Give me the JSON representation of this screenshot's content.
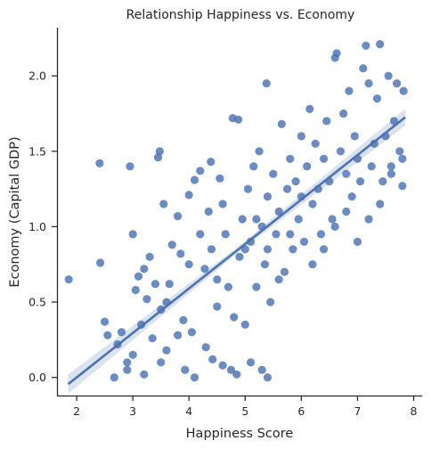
{
  "chart_data": {
    "type": "scatter",
    "title": "Relationship Happiness vs. Economy",
    "xlabel": "Happiness Score",
    "ylabel": "Economy (Capital GDP)",
    "xlim": [
      1.65,
      8.15
    ],
    "ylim": [
      -0.12,
      2.32
    ],
    "xticks": [
      2,
      3,
      4,
      5,
      6,
      7,
      8
    ],
    "yticks": [
      0.0,
      0.5,
      1.0,
      1.5,
      2.0
    ],
    "ytick_labels": [
      "0.0",
      "0.5",
      "1.0",
      "1.5",
      "2.0"
    ],
    "grid": false,
    "legend": "none",
    "regression": {
      "slope": 0.295,
      "intercept": -0.59,
      "x_range": [
        1.85,
        7.85
      ],
      "ci_halfwidth": 0.04
    },
    "series": [
      {
        "color": "#4c72b0",
        "points": [
          [
            1.86,
            0.65
          ],
          [
            2.41,
            1.42
          ],
          [
            2.42,
            0.76
          ],
          [
            2.5,
            0.37
          ],
          [
            2.55,
            0.28
          ],
          [
            2.73,
            0.22
          ],
          [
            2.8,
            0.3
          ],
          [
            2.9,
            0.1
          ],
          [
            2.95,
            1.4
          ],
          [
            3.0,
            0.95
          ],
          [
            3.05,
            0.58
          ],
          [
            3.1,
            0.67
          ],
          [
            3.15,
            0.35
          ],
          [
            3.2,
            0.72
          ],
          [
            3.25,
            0.52
          ],
          [
            3.3,
            0.8
          ],
          [
            3.35,
            0.26
          ],
          [
            3.45,
            1.46
          ],
          [
            3.48,
            1.5
          ],
          [
            3.5,
            0.45
          ],
          [
            3.55,
            1.15
          ],
          [
            3.6,
            0.18
          ],
          [
            3.65,
            0.62
          ],
          [
            3.7,
            0.88
          ],
          [
            3.8,
            1.07
          ],
          [
            3.85,
            0.82
          ],
          [
            3.9,
            0.38
          ],
          [
            3.93,
            0.05
          ],
          [
            4.0,
            1.21
          ],
          [
            4.1,
            1.31
          ],
          [
            4.05,
            0.3
          ],
          [
            4.2,
            1.37
          ],
          [
            4.28,
            0.72
          ],
          [
            4.35,
            1.1
          ],
          [
            4.39,
            1.43
          ],
          [
            4.42,
            0.12
          ],
          [
            4.5,
            0.47
          ],
          [
            4.55,
            1.32
          ],
          [
            4.6,
            1.15
          ],
          [
            4.65,
            0.95
          ],
          [
            4.7,
            0.6
          ],
          [
            4.75,
            0.05
          ],
          [
            4.78,
            1.72
          ],
          [
            4.88,
            1.71
          ],
          [
            4.9,
            0.8
          ],
          [
            4.95,
            1.05
          ],
          [
            5.0,
            0.35
          ],
          [
            5.05,
            1.25
          ],
          [
            5.1,
            0.9
          ],
          [
            5.15,
            1.4
          ],
          [
            5.2,
            0.6
          ],
          [
            5.25,
            1.5
          ],
          [
            5.3,
            1.0
          ],
          [
            5.35,
            0.75
          ],
          [
            5.38,
            1.95
          ],
          [
            5.4,
            1.2
          ],
          [
            5.45,
            0.5
          ],
          [
            5.5,
            1.35
          ],
          [
            5.55,
            0.95
          ],
          [
            5.6,
            1.1
          ],
          [
            5.65,
            1.68
          ],
          [
            5.7,
            0.7
          ],
          [
            5.75,
            1.25
          ],
          [
            5.8,
            1.45
          ],
          [
            5.85,
            0.85
          ],
          [
            5.9,
            1.3
          ],
          [
            5.95,
            1.05
          ],
          [
            6.0,
            1.6
          ],
          [
            6.05,
            0.9
          ],
          [
            6.1,
            1.4
          ],
          [
            6.15,
            1.78
          ],
          [
            6.2,
            1.15
          ],
          [
            6.25,
            1.55
          ],
          [
            6.3,
            1.25
          ],
          [
            6.35,
            0.95
          ],
          [
            6.4,
            1.45
          ],
          [
            6.45,
            1.7
          ],
          [
            6.5,
            1.3
          ],
          [
            6.55,
            1.05
          ],
          [
            6.6,
            2.12
          ],
          [
            6.63,
            2.15
          ],
          [
            6.7,
            1.5
          ],
          [
            6.75,
            1.75
          ],
          [
            6.8,
            1.35
          ],
          [
            6.85,
            1.9
          ],
          [
            6.9,
            1.2
          ],
          [
            6.95,
            1.6
          ],
          [
            7.0,
            1.45
          ],
          [
            7.05,
            1.3
          ],
          [
            7.1,
            2.05
          ],
          [
            7.15,
            2.2
          ],
          [
            7.2,
            1.95
          ],
          [
            7.25,
            1.4
          ],
          [
            7.3,
            1.55
          ],
          [
            7.35,
            1.85
          ],
          [
            7.4,
            2.21
          ],
          [
            7.45,
            1.3
          ],
          [
            7.5,
            1.6
          ],
          [
            7.55,
            2.0
          ],
          [
            7.6,
            1.4
          ],
          [
            7.65,
            1.7
          ],
          [
            7.7,
            1.95
          ],
          [
            7.75,
            1.5
          ],
          [
            7.8,
            1.27
          ],
          [
            7.82,
            1.9
          ],
          [
            3.2,
            0.02
          ],
          [
            3.5,
            0.1
          ],
          [
            3.8,
            0.28
          ],
          [
            4.1,
            0.0
          ],
          [
            4.3,
            0.2
          ],
          [
            4.6,
            0.08
          ],
          [
            4.85,
            0.02
          ],
          [
            5.1,
            0.1
          ],
          [
            5.3,
            0.05
          ],
          [
            5.4,
            0.0
          ],
          [
            2.67,
            0.0
          ],
          [
            2.9,
            0.05
          ],
          [
            3.0,
            0.15
          ],
          [
            3.4,
            0.62
          ],
          [
            3.6,
            0.5
          ],
          [
            4.0,
            0.75
          ],
          [
            4.2,
            0.95
          ],
          [
            4.4,
            0.85
          ],
          [
            4.5,
            0.65
          ],
          [
            4.8,
            0.4
          ],
          [
            5.0,
            0.85
          ],
          [
            5.2,
            1.05
          ],
          [
            5.4,
            0.85
          ],
          [
            5.6,
            0.65
          ],
          [
            5.8,
            0.95
          ],
          [
            6.0,
            1.2
          ],
          [
            6.2,
            0.75
          ],
          [
            6.4,
            0.85
          ],
          [
            6.6,
            1.0
          ],
          [
            6.8,
            1.1
          ],
          [
            7.0,
            0.9
          ],
          [
            7.2,
            1.05
          ],
          [
            7.4,
            1.15
          ],
          [
            7.6,
            1.35
          ],
          [
            7.8,
            1.45
          ]
        ]
      }
    ]
  }
}
